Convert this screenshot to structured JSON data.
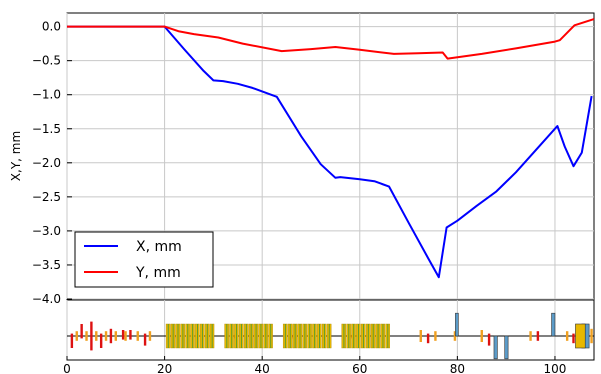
{
  "chart_data": {
    "type": "line",
    "ylabel": "X,Y, mm",
    "xlim": [
      0,
      108
    ],
    "ylim": [
      -4.0,
      0.2
    ],
    "grid": true,
    "legend_position": "lower-left",
    "x_ticks": [
      0,
      20,
      40,
      60,
      80,
      100
    ],
    "y_ticks": [
      0.0,
      -0.5,
      -1.0,
      -1.5,
      -2.0,
      -2.5,
      -3.0,
      -3.5,
      -4.0
    ],
    "x_tick_labels": [
      "0",
      "20",
      "40",
      "60",
      "80",
      "100"
    ],
    "y_tick_labels": [
      "0.0",
      "−0.5",
      "−1.0",
      "−1.5",
      "−2.0",
      "−2.5",
      "−3.0",
      "−3.5",
      "−4.0"
    ],
    "series": [
      {
        "name": "X, mm",
        "color": "#0000ff",
        "x": [
          0,
          20,
          24,
          28,
          30,
          32,
          35,
          38,
          43,
          48,
          52,
          55,
          56,
          60,
          63,
          66,
          70,
          74,
          76.2,
          77.8,
          80,
          84,
          88,
          92,
          96,
          100.5,
          102,
          103.8,
          105.5,
          107.5
        ],
        "y": [
          0,
          0,
          -0.33,
          -0.65,
          -0.79,
          -0.8,
          -0.84,
          -0.9,
          -1.03,
          -1.61,
          -2.02,
          -2.22,
          -2.21,
          -2.24,
          -2.27,
          -2.35,
          -2.88,
          -3.4,
          -3.68,
          -2.95,
          -2.85,
          -2.63,
          -2.42,
          -2.14,
          -1.82,
          -1.46,
          -1.76,
          -2.05,
          -1.85,
          -1.02
        ]
      },
      {
        "name": "Y, mm",
        "color": "#ff0000",
        "x": [
          0,
          20,
          23,
          26,
          31,
          36,
          44,
          50,
          55,
          60,
          67,
          72,
          77,
          78,
          85,
          92,
          100,
          101,
          104,
          108
        ],
        "y": [
          0,
          0,
          -0.07,
          -0.11,
          -0.16,
          -0.25,
          -0.36,
          -0.33,
          -0.3,
          -0.34,
          -0.4,
          -0.39,
          -0.38,
          -0.47,
          -0.4,
          -0.32,
          -0.22,
          -0.2,
          0.02,
          0.11
        ]
      }
    ],
    "lattice": {
      "type": "beamline-elements",
      "elements": [
        {
          "type": "bar",
          "x": 1,
          "color": "#dd1111",
          "top": 0.1,
          "bottom": -0.5
        },
        {
          "type": "bar",
          "x": 3,
          "color": "#dd1111",
          "top": 0.5,
          "bottom": -0.1
        },
        {
          "type": "bar",
          "x": 5,
          "color": "#dd1111",
          "top": 0.6,
          "bottom": -0.6
        },
        {
          "type": "bar",
          "x": 7,
          "color": "#dd1111",
          "top": 0.1,
          "bottom": -0.5
        },
        {
          "type": "bar",
          "x": 9,
          "color": "#dd1111",
          "top": 0.3,
          "bottom": -0.3
        },
        {
          "type": "bar",
          "x": 11.5,
          "color": "#dd1111",
          "top": 0.25,
          "bottom": -0.15
        },
        {
          "type": "bar",
          "x": 13,
          "color": "#dd1111",
          "top": 0.25,
          "bottom": -0.15
        },
        {
          "type": "bar",
          "x": 16,
          "color": "#dd1111",
          "top": 0.1,
          "bottom": -0.4
        },
        {
          "type": "bar",
          "x": 2,
          "color": "#f0a020",
          "top": 0.2,
          "bottom": -0.2
        },
        {
          "type": "bar",
          "x": 4,
          "color": "#f0a020",
          "top": 0.2,
          "bottom": -0.2
        },
        {
          "type": "bar",
          "x": 6,
          "color": "#f0a020",
          "top": 0.2,
          "bottom": -0.2
        },
        {
          "type": "bar",
          "x": 8,
          "color": "#f0a020",
          "top": 0.2,
          "bottom": -0.2
        },
        {
          "type": "bar",
          "x": 10,
          "color": "#f0a020",
          "top": 0.2,
          "bottom": -0.2
        },
        {
          "type": "bar",
          "x": 12,
          "color": "#f0a020",
          "top": 0.2,
          "bottom": -0.2
        },
        {
          "type": "bar",
          "x": 14.5,
          "color": "#f0a020",
          "top": 0.2,
          "bottom": -0.2
        },
        {
          "type": "bar",
          "x": 17,
          "color": "#f0a020",
          "top": 0.2,
          "bottom": -0.2
        },
        {
          "type": "bar",
          "x": 22.5,
          "color": "#dd1111",
          "top": 0.05,
          "bottom": -0.1
        },
        {
          "type": "bar",
          "x": 34.5,
          "color": "#dd1111",
          "top": 0.05,
          "bottom": -0.1
        },
        {
          "type": "bar",
          "x": 46.5,
          "color": "#dd1111",
          "top": 0.05,
          "bottom": -0.1
        },
        {
          "type": "bar",
          "x": 58.5,
          "color": "#dd1111",
          "top": 0.05,
          "bottom": -0.1
        },
        {
          "type": "bar",
          "x": 72.5,
          "color": "#f0a020",
          "top": 0.25,
          "bottom": -0.25
        },
        {
          "type": "bar",
          "x": 74,
          "color": "#dd1111",
          "top": 0.1,
          "bottom": -0.3
        },
        {
          "type": "bar",
          "x": 75.5,
          "color": "#f0a020",
          "top": 0.2,
          "bottom": -0.2
        },
        {
          "type": "bar",
          "x": 79.5,
          "color": "#f0a020",
          "top": 0.2,
          "bottom": -0.2
        },
        {
          "type": "bar",
          "x": 85,
          "color": "#f0a020",
          "top": 0.25,
          "bottom": -0.25
        },
        {
          "type": "bar",
          "x": 86.5,
          "color": "#dd1111",
          "top": 0.1,
          "bottom": -0.4
        },
        {
          "type": "bar",
          "x": 95,
          "color": "#f0a020",
          "top": 0.2,
          "bottom": -0.2
        },
        {
          "type": "bar",
          "x": 96.5,
          "color": "#dd1111",
          "top": 0.2,
          "bottom": -0.2
        },
        {
          "type": "bar",
          "x": 102.5,
          "color": "#f0a020",
          "top": 0.2,
          "bottom": -0.2
        },
        {
          "type": "bar",
          "x": 103.8,
          "color": "#dd1111",
          "top": 0.1,
          "bottom": -0.3
        },
        {
          "type": "bar",
          "x": 107.5,
          "color": "#f0a020",
          "top": 0.3,
          "bottom": -0.3
        },
        {
          "type": "box",
          "x0": 79.6,
          "x1": 80.2,
          "color": "#5b9bc8",
          "top": 0.95,
          "bottom": 0
        },
        {
          "type": "box",
          "x0": 87.5,
          "x1": 88.2,
          "color": "#5b9bc8",
          "top": 0,
          "bottom": -0.95
        },
        {
          "type": "box",
          "x0": 89.7,
          "x1": 90.4,
          "color": "#5b9bc8",
          "top": 0,
          "bottom": -0.95
        },
        {
          "type": "box",
          "x0": 99.3,
          "x1": 100,
          "color": "#5b9bc8",
          "top": 0.95,
          "bottom": 0
        },
        {
          "type": "box",
          "x0": 105.5,
          "x1": 107,
          "color": "#5b9bc8",
          "top": 0.5,
          "bottom": -0.5
        },
        {
          "type": "box",
          "x0": 104.2,
          "x1": 106.2,
          "color": "#e8b800",
          "top": 0.5,
          "bottom": -0.5
        },
        {
          "type": "cavities",
          "x0": 20.3,
          "x1": 30.3,
          "n": 10,
          "color": "#e8b800",
          "top": 0.5,
          "bottom": -0.5
        },
        {
          "type": "cavities",
          "x0": 32.3,
          "x1": 42.3,
          "n": 10,
          "color": "#e8b800",
          "top": 0.5,
          "bottom": -0.5
        },
        {
          "type": "cavities",
          "x0": 44.3,
          "x1": 54.3,
          "n": 10,
          "color": "#e8b800",
          "top": 0.5,
          "bottom": -0.5
        },
        {
          "type": "cavities",
          "x0": 56.3,
          "x1": 66.3,
          "n": 10,
          "color": "#e8b800",
          "top": 0.5,
          "bottom": -0.5
        }
      ]
    }
  }
}
